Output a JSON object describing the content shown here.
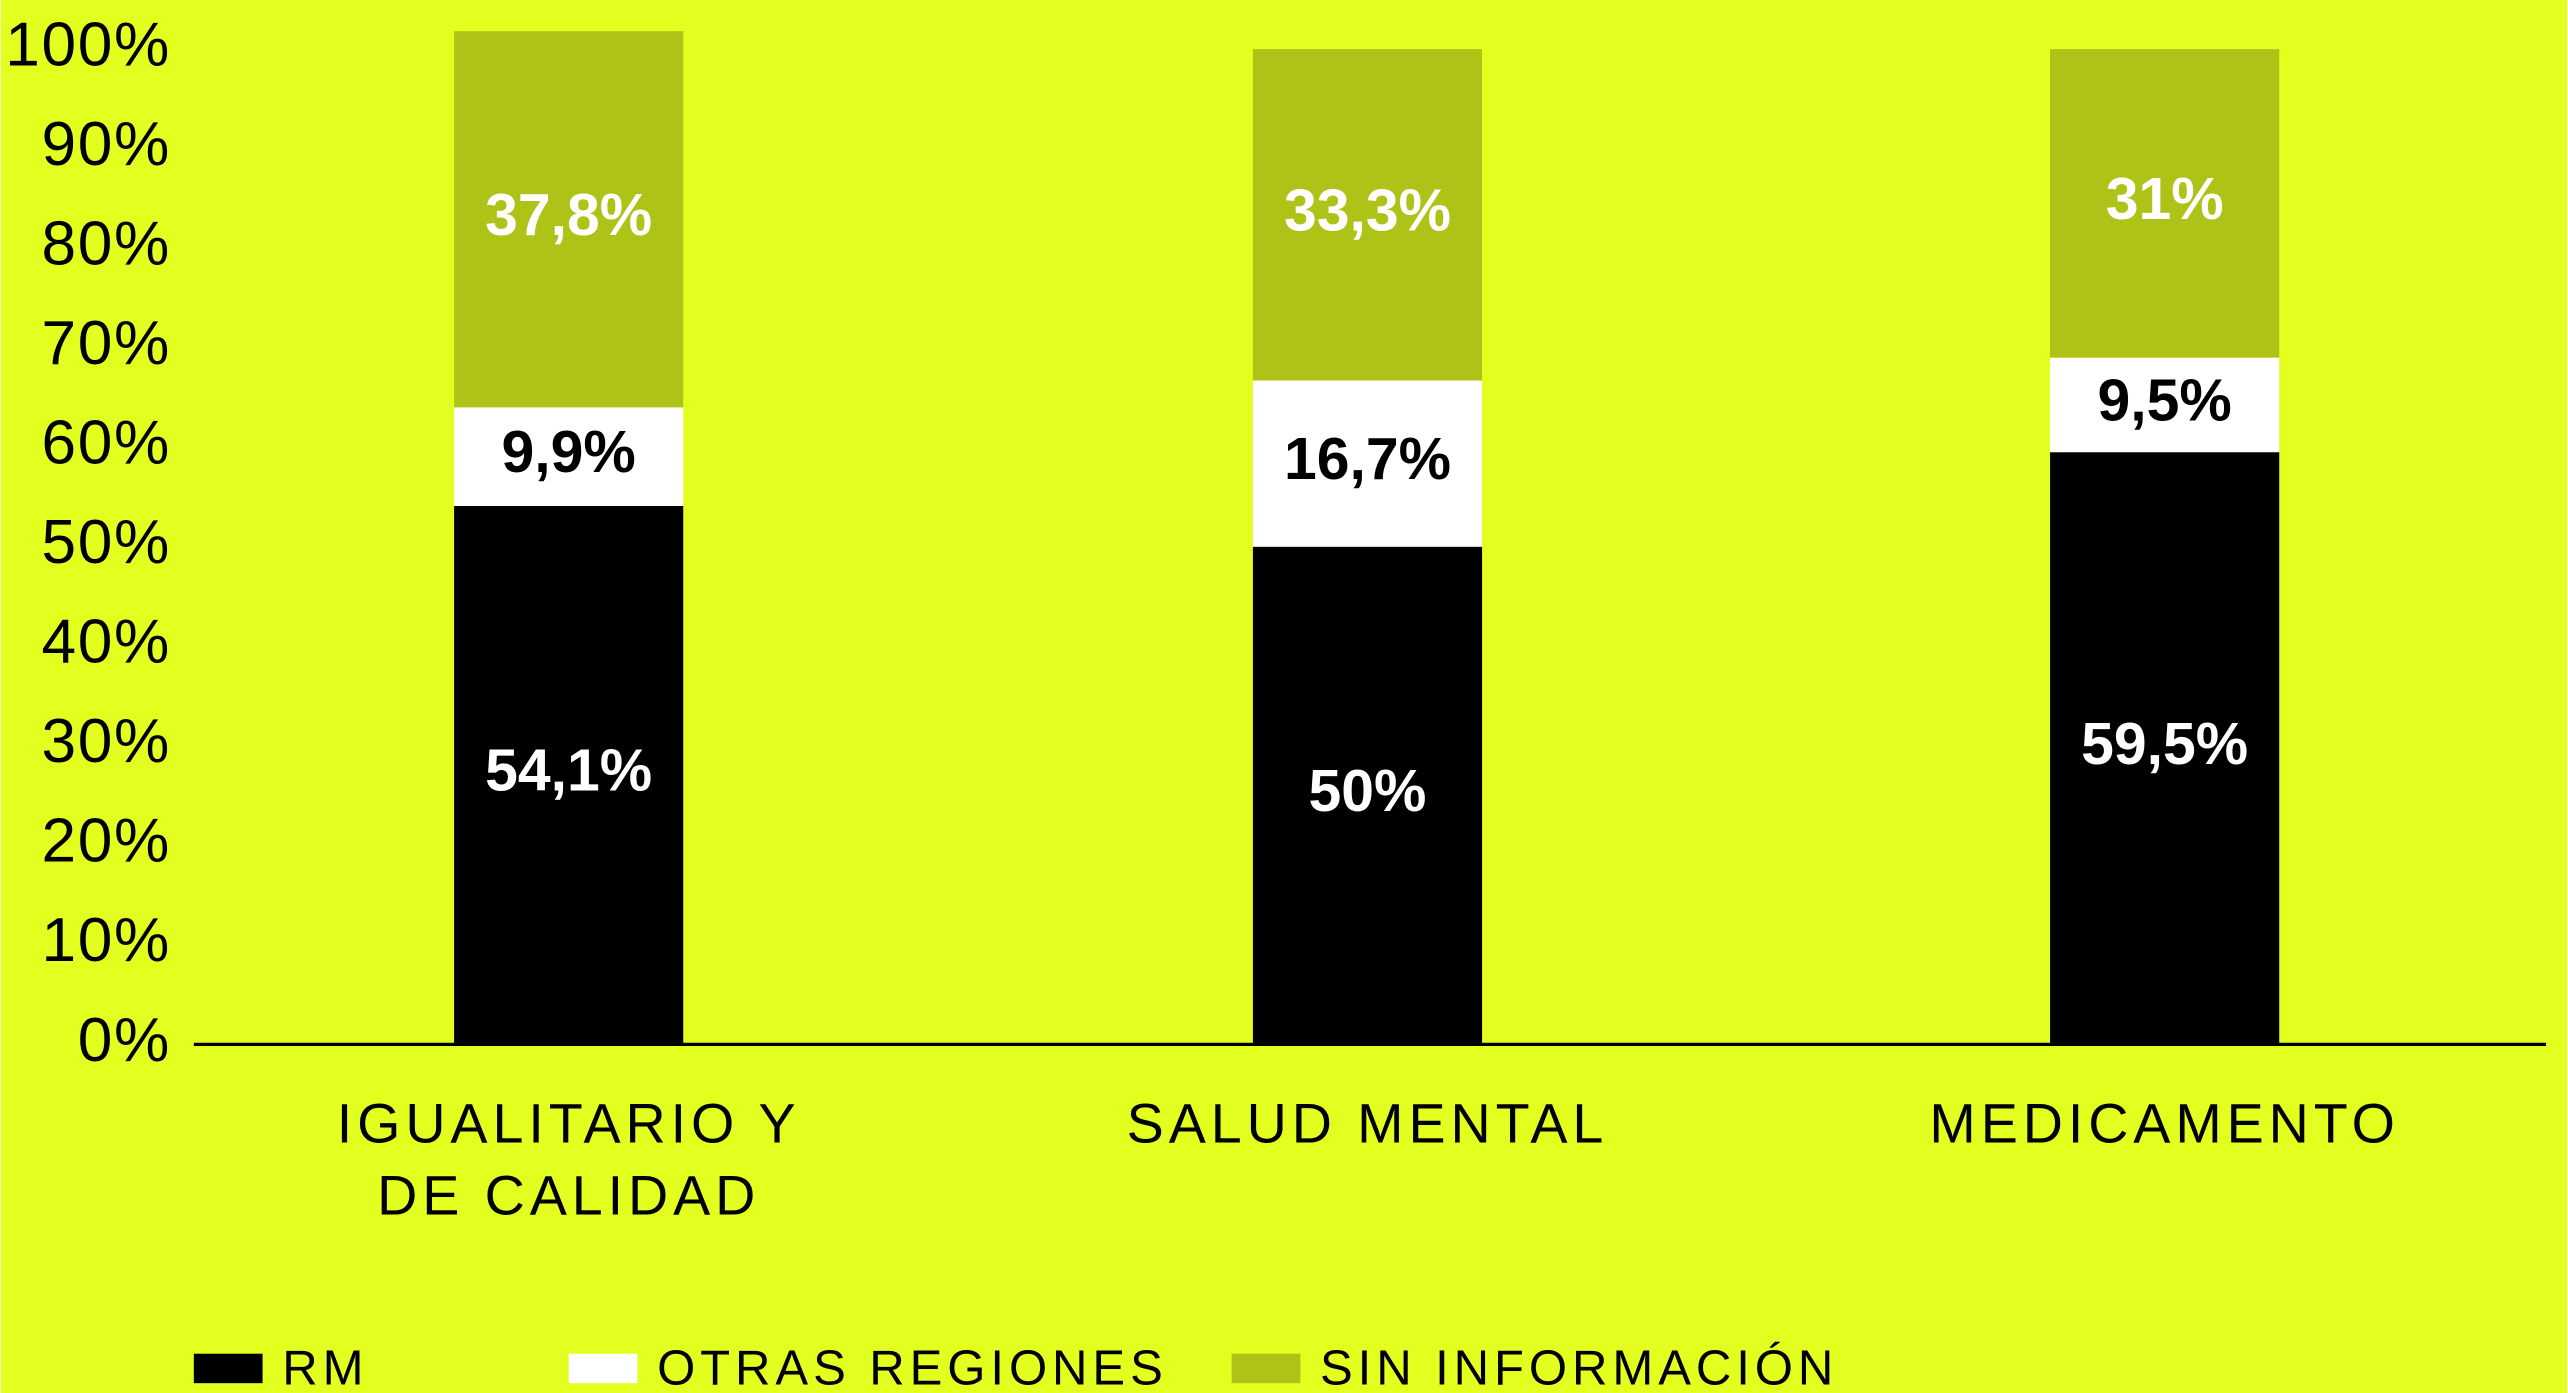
{
  "chart_data": {
    "type": "stacked_bar",
    "categories": [
      "IGUALITARIO Y DE CALIDAD",
      "SALUD MENTAL",
      "MEDICAMENTO"
    ],
    "series": [
      {
        "name": "RM",
        "color": "#000000",
        "values": [
          54.1,
          50,
          59.5
        ],
        "value_labels": [
          "54,1%",
          "50%",
          "59,5%"
        ]
      },
      {
        "name": "OTRAS REGIONES",
        "color": "#ffffff",
        "values": [
          9.9,
          16.7,
          9.5
        ],
        "value_labels": [
          "9,9%",
          "16,7%",
          "9,5%"
        ]
      },
      {
        "name": "SIN INFORMACIÓN",
        "color": "#aec217",
        "values": [
          37.8,
          33.3,
          31
        ],
        "value_labels": [
          "37,8%",
          "33,3%",
          "31%"
        ]
      }
    ],
    "ylim": [
      0,
      100
    ],
    "yticks": [
      {
        "value": 0,
        "label": "0%"
      },
      {
        "value": 10,
        "label": "10%"
      },
      {
        "value": 20,
        "label": "20%"
      },
      {
        "value": 30,
        "label": "30%"
      },
      {
        "value": 40,
        "label": "40%"
      },
      {
        "value": 50,
        "label": "50%"
      },
      {
        "value": 60,
        "label": "60%"
      },
      {
        "value": 70,
        "label": "70%"
      },
      {
        "value": 80,
        "label": "80%"
      },
      {
        "value": 90,
        "label": "90%"
      },
      {
        "value": 100,
        "label": "100%"
      }
    ],
    "background": "#e2ff1f"
  }
}
